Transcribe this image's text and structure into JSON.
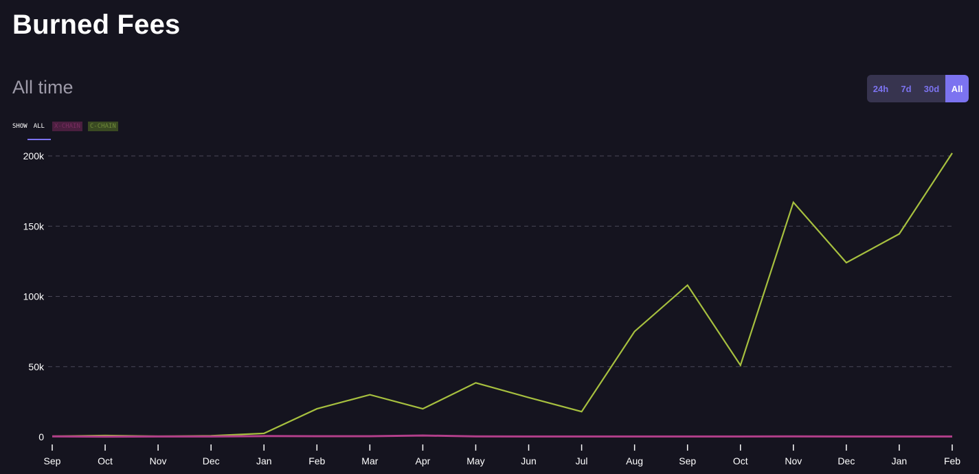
{
  "header": {
    "title": "Burned Fees",
    "subtitle": "All time"
  },
  "range_buttons": [
    {
      "label": "24h",
      "active": false
    },
    {
      "label": "7d",
      "active": false
    },
    {
      "label": "30d",
      "active": false
    },
    {
      "label": "All",
      "active": true
    }
  ],
  "filters": {
    "show_label": "SHOW",
    "options": [
      {
        "label": "ALL",
        "active": true
      },
      {
        "label": "X-CHAIN",
        "active": false
      },
      {
        "label": "C-CHAIN",
        "active": false
      }
    ]
  },
  "colors": {
    "background": "#15141f",
    "accent": "#7c73f0",
    "c_chain": "#a7c03f",
    "x_chain": "#b23f8a",
    "grid": "#4a4858"
  },
  "chart_data": {
    "type": "line",
    "title": "",
    "xlabel": "",
    "ylabel": "",
    "ylim": [
      0,
      200000
    ],
    "y_ticks": [
      0,
      50000,
      100000,
      150000,
      200000
    ],
    "y_tick_labels": [
      "0",
      "50k",
      "100k",
      "150k",
      "200k"
    ],
    "grid": "horizontal dashed",
    "categories": [
      "Sep",
      "Oct",
      "Nov",
      "Dec",
      "Jan",
      "Feb",
      "Mar",
      "Apr",
      "May",
      "Jun",
      "Jul",
      "Aug",
      "Sep",
      "Oct",
      "Nov",
      "Dec",
      "Jan",
      "Feb"
    ],
    "series": [
      {
        "name": "C-CHAIN",
        "color": "#a7c03f",
        "values": [
          500,
          1000,
          500,
          800,
          2500,
          20000,
          30000,
          20000,
          38500,
          28000,
          18000,
          75000,
          108000,
          51000,
          167000,
          124000,
          144500,
          202000
        ]
      },
      {
        "name": "X-CHAIN",
        "color": "#b23f8a",
        "values": [
          400,
          200,
          300,
          300,
          600,
          500,
          500,
          1000,
          400,
          300,
          300,
          300,
          300,
          300,
          400,
          300,
          300,
          300
        ]
      }
    ]
  }
}
